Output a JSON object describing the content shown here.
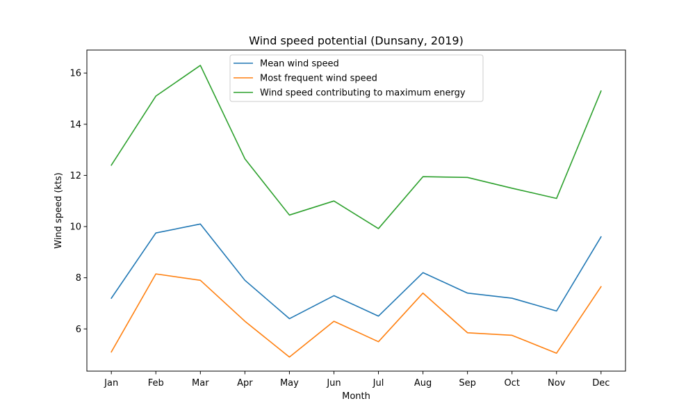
{
  "chart_data": {
    "type": "line",
    "title": "Wind speed potential (Dunsany, 2019)",
    "xlabel": "Month",
    "ylabel": "Wind speed (kts)",
    "categories": [
      "Jan",
      "Feb",
      "Mar",
      "Apr",
      "May",
      "Jun",
      "Jul",
      "Aug",
      "Sep",
      "Oct",
      "Nov",
      "Dec"
    ],
    "ylim": [
      4.35,
      16.9
    ],
    "yticks": [
      6,
      8,
      10,
      12,
      14,
      16
    ],
    "grid": false,
    "legend_position": "top-center",
    "series": [
      {
        "name": "Mean wind speed",
        "color": "#1f77b4",
        "values": [
          7.2,
          9.75,
          10.1,
          7.9,
          6.4,
          7.3,
          6.5,
          8.2,
          7.4,
          7.2,
          6.7,
          9.6
        ]
      },
      {
        "name": "Most frequent wind speed",
        "color": "#ff7f0e",
        "values": [
          5.1,
          8.15,
          7.9,
          6.3,
          4.9,
          6.3,
          5.5,
          7.4,
          5.85,
          5.75,
          5.05,
          7.65
        ]
      },
      {
        "name": "Wind speed contributing to maximum energy",
        "color": "#2ca02c",
        "values": [
          12.4,
          15.1,
          16.3,
          12.65,
          10.45,
          11.0,
          9.92,
          11.95,
          11.92,
          11.5,
          11.1,
          15.3
        ]
      }
    ]
  }
}
